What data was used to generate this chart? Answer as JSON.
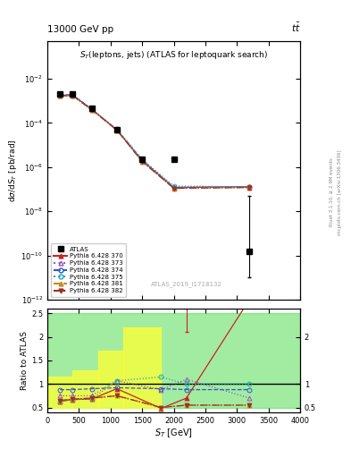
{
  "title_top": "13000 GeV pp",
  "title_top_right": "tt",
  "plot_title": "$S_{T}$(leptons, jets) (ATLAS for leptoquark search)",
  "xlabel": "$S_{T}$ [GeV]",
  "ylabel_main": "d$\\sigma$/d$S_{T}$ [pb/rad]",
  "ylabel_ratio": "Ratio to ATLAS",
  "watermark": "ATLAS_2019_I1718132",
  "atlas_x": [
    200,
    400,
    700,
    1100,
    1500,
    2000,
    3200
  ],
  "atlas_y": [
    0.002,
    0.002,
    0.00045,
    5e-05,
    2.2e-06,
    2.2e-06,
    1.5e-10
  ],
  "atlas_yerr_lo": [
    0,
    0,
    0,
    0,
    0,
    0,
    0
  ],
  "atlas_yerr_hi": [
    0,
    0,
    0,
    0,
    0,
    0,
    0
  ],
  "py370_x": [
    200,
    400,
    700,
    1100,
    1500,
    2000,
    3200
  ],
  "py370_y": [
    0.0018,
    0.0018,
    0.00042,
    4.8e-05,
    2e-06,
    1.2e-07,
    1.3e-07
  ],
  "py373_x": [
    200,
    400,
    700,
    1100,
    1500,
    2000,
    3200
  ],
  "py373_y": [
    0.0017,
    0.0017,
    0.0004,
    5.2e-05,
    2.1e-06,
    1.3e-07,
    1.3e-07
  ],
  "py374_x": [
    200,
    400,
    700,
    1100,
    1500,
    2000,
    3200
  ],
  "py374_y": [
    0.0019,
    0.0019,
    0.00043,
    5e-05,
    2.1e-06,
    1.2e-07,
    1.3e-07
  ],
  "py375_x": [
    200,
    400,
    700,
    1100,
    1500,
    2000,
    3200
  ],
  "py375_y": [
    0.0017,
    0.0017,
    0.00041,
    5.4e-05,
    2.3e-06,
    1.4e-07,
    1.3e-07
  ],
  "py381_x": [
    200,
    400,
    700,
    1100,
    1500,
    2000,
    3200
  ],
  "py381_y": [
    0.0017,
    0.0017,
    0.0004,
    4.7e-05,
    1.8e-06,
    1.1e-07,
    1.2e-07
  ],
  "py382_x": [
    200,
    400,
    700,
    1100,
    1500,
    2000,
    3200
  ],
  "py382_y": [
    0.0017,
    0.0017,
    0.0004,
    4.7e-05,
    1.8e-06,
    1.1e-07,
    1.2e-07
  ],
  "ratio_x": [
    200,
    400,
    700,
    1100,
    1800,
    2200,
    3200
  ],
  "ratio_py370": [
    0.63,
    0.67,
    0.68,
    0.9,
    0.48,
    0.7,
    2.8
  ],
  "ratio_py373": [
    0.75,
    0.75,
    0.75,
    1.07,
    0.88,
    1.1,
    0.7
  ],
  "ratio_py374": [
    0.88,
    0.88,
    0.9,
    0.92,
    0.9,
    0.88,
    0.88
  ],
  "ratio_py375": [
    0.63,
    0.67,
    0.68,
    1.07,
    1.15,
    1.0,
    1.0
  ],
  "ratio_py381": [
    0.65,
    0.68,
    0.7,
    0.75,
    0.5,
    0.55,
    0.55
  ],
  "ratio_py382": [
    0.65,
    0.68,
    0.7,
    0.75,
    0.5,
    0.55,
    0.55
  ],
  "ylim_main": [
    1e-12,
    0.5
  ],
  "xlim": [
    0,
    4000
  ],
  "ylim_ratio": [
    0.4,
    2.6
  ],
  "yticks_ratio": [
    0.5,
    1.0,
    1.5,
    2.0,
    2.5
  ],
  "ytick_ratio_labels": [
    "0.5",
    "1",
    "1.5",
    "2",
    "2.5"
  ],
  "color_atlas": "#000000",
  "color_py370": "#cc2222",
  "color_py373": "#9955bb",
  "color_py374": "#3355cc",
  "color_py375": "#22aaaa",
  "color_py381": "#cc8822",
  "color_py382": "#993322",
  "label_atlas": "ATLAS",
  "label_py370": "Pythia 6.428 370",
  "label_py373": "Pythia 6.428 373",
  "label_py374": "Pythia 6.428 374",
  "label_py375": "Pythia 6.428 375",
  "label_py381": "Pythia 6.428 381",
  "label_py382": "Pythia 6.428 382"
}
